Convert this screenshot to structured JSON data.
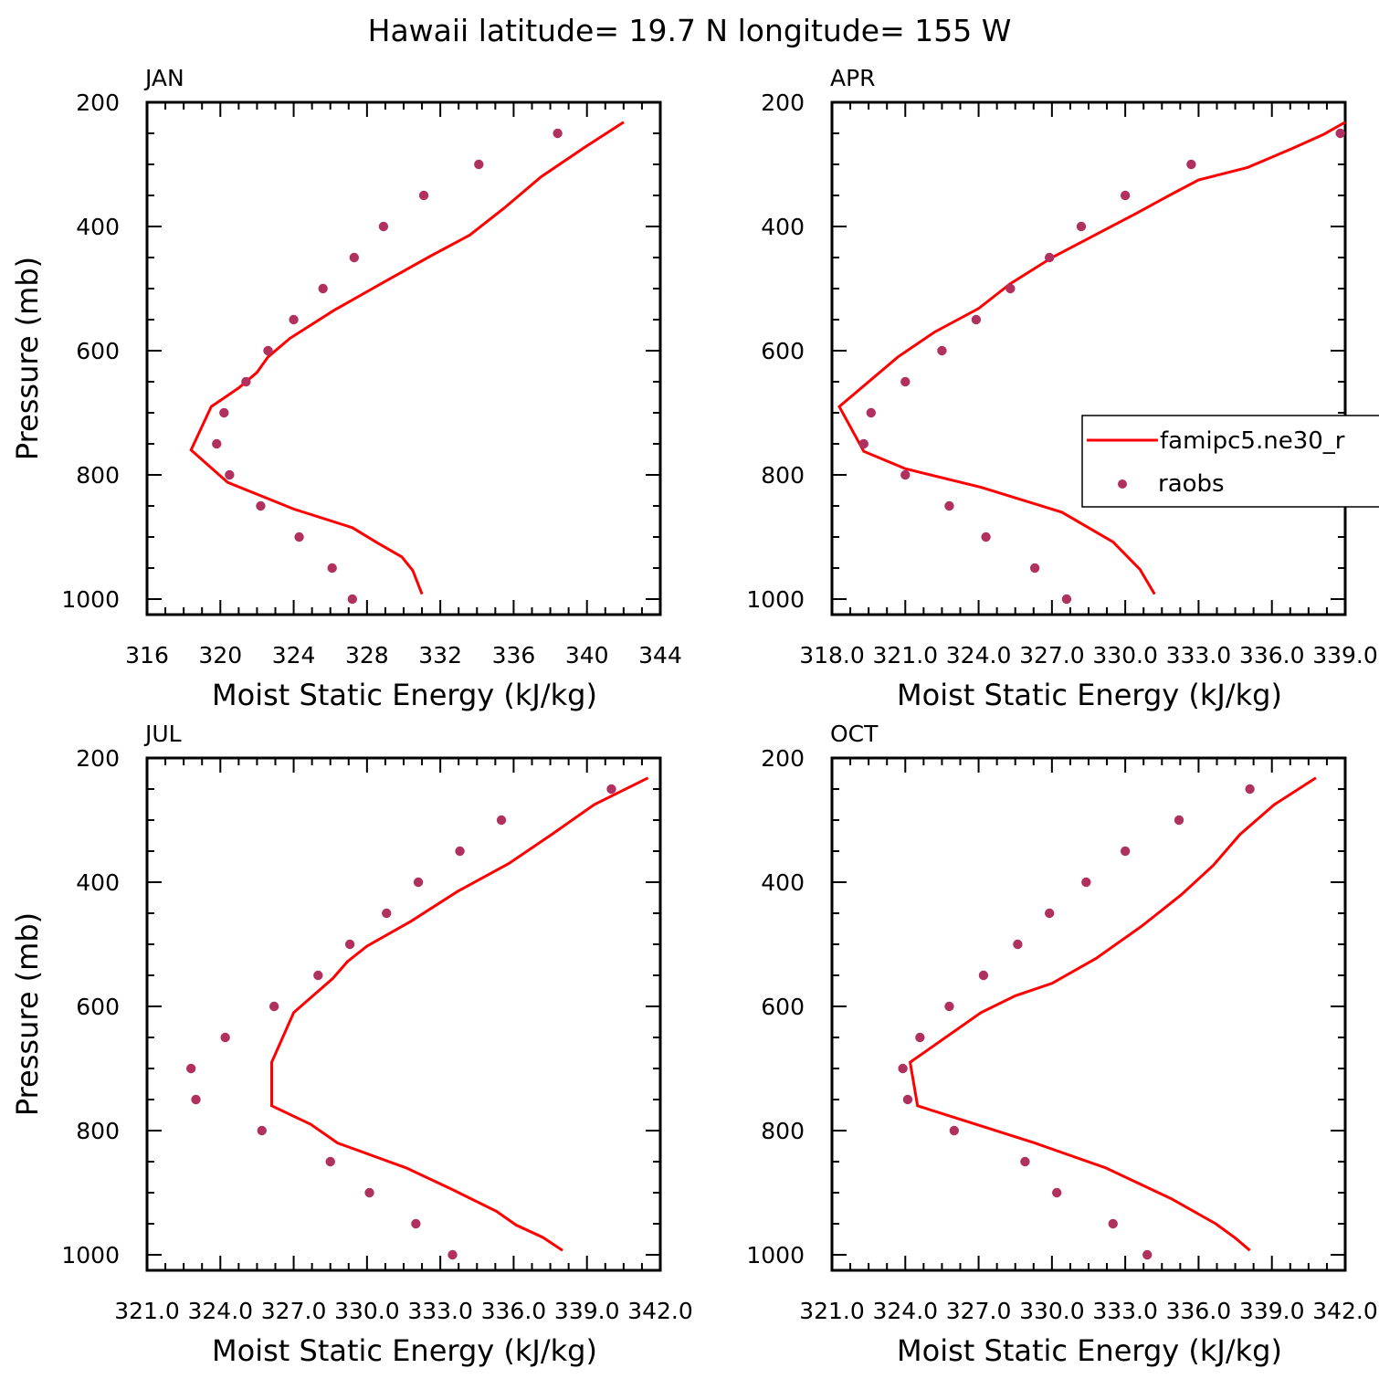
{
  "figure_title": "Hawaii  latitude= 19.7 N longitude= 155 W",
  "legend": {
    "model_label": "famipc5.ne30_r",
    "obs_label": "raobs"
  },
  "colors": {
    "model_line": "#ff0000",
    "obs_marker": "#b03060",
    "axes": "#000000"
  },
  "chart_data": [
    {
      "type": "line",
      "panel": "JAN",
      "title": "JAN",
      "xlabel": "Moist Static Energy (kJ/kg)",
      "ylabel": "Pressure (mb)",
      "xlim": [
        316,
        344
      ],
      "ylim": [
        1025,
        200
      ],
      "xticks": [
        316,
        320,
        324,
        328,
        332,
        336,
        340,
        344
      ],
      "xtick_labels": [
        "316",
        "320",
        "324",
        "328",
        "332",
        "336",
        "340",
        "344"
      ],
      "yticks": [
        200,
        400,
        600,
        800,
        1000
      ],
      "ytick_labels": [
        "200",
        "400",
        "600",
        "800",
        "1000"
      ],
      "series": [
        {
          "name": "famipc5.ne30_r",
          "kind": "line",
          "x": [
            342.0,
            339.9,
            337.5,
            335.5,
            333.6,
            331.5,
            328.9,
            326.2,
            323.8,
            322.6,
            322.0,
            321.0,
            319.5,
            318.4,
            320.4,
            324.0,
            327.2,
            328.6,
            329.9,
            330.5,
            331.0
          ],
          "y": [
            232,
            272,
            320,
            370,
            414,
            447,
            490,
            535,
            580,
            610,
            635,
            660,
            690,
            760,
            812,
            855,
            885,
            910,
            932,
            954,
            992
          ]
        },
        {
          "name": "raobs",
          "kind": "scatter",
          "x": [
            338.4,
            334.1,
            331.1,
            328.9,
            327.3,
            325.6,
            324.0,
            322.6,
            321.4,
            320.2,
            319.8,
            320.5,
            322.2,
            324.3,
            326.1,
            327.2
          ],
          "y": [
            250,
            300,
            350,
            400,
            450,
            500,
            550,
            600,
            650,
            700,
            750,
            800,
            850,
            900,
            950,
            1000
          ]
        }
      ]
    },
    {
      "type": "line",
      "panel": "APR",
      "title": "APR",
      "xlabel": "Moist Static Energy (kJ/kg)",
      "ylabel": "",
      "xlim": [
        318.0,
        339.0
      ],
      "ylim": [
        1025,
        200
      ],
      "xticks": [
        318,
        321,
        324,
        327,
        330,
        333,
        336,
        339
      ],
      "xtick_labels": [
        "318.0",
        "321.0",
        "324.0",
        "327.0",
        "330.0",
        "333.0",
        "336.0",
        "339.0"
      ],
      "yticks": [
        200,
        400,
        600,
        800,
        1000
      ],
      "ytick_labels": [
        "200",
        "400",
        "600",
        "800",
        "1000"
      ],
      "legend_position": "center-right",
      "series": [
        {
          "name": "famipc5.ne30_r",
          "kind": "line",
          "x": [
            339.0,
            338.1,
            336.8,
            335.0,
            333.0,
            331.8,
            330.4,
            328.8,
            327.0,
            325.3,
            324.0,
            322.2,
            320.7,
            318.3,
            319.3,
            321.0,
            324.1,
            327.4,
            329.5,
            330.6,
            331.2
          ],
          "y": [
            232,
            252,
            275,
            305,
            325,
            350,
            380,
            413,
            450,
            492,
            532,
            570,
            610,
            690,
            762,
            790,
            820,
            860,
            908,
            952,
            992
          ]
        },
        {
          "name": "raobs",
          "kind": "scatter",
          "x": [
            338.8,
            332.7,
            330.0,
            328.2,
            326.9,
            325.3,
            323.9,
            322.5,
            321.0,
            319.6,
            319.3,
            321.0,
            322.8,
            324.3,
            326.3,
            327.6
          ],
          "y": [
            250,
            300,
            350,
            400,
            450,
            500,
            550,
            600,
            650,
            700,
            750,
            800,
            850,
            900,
            950,
            1000
          ]
        }
      ]
    },
    {
      "type": "line",
      "panel": "JUL",
      "title": "JUL",
      "xlabel": "Moist Static Energy (kJ/kg)",
      "ylabel": "Pressure (mb)",
      "xlim": [
        321.0,
        342.0
      ],
      "ylim": [
        1025,
        200
      ],
      "xticks": [
        321,
        324,
        327,
        330,
        333,
        336,
        339,
        342
      ],
      "xtick_labels": [
        "321.0",
        "324.0",
        "327.0",
        "330.0",
        "333.0",
        "336.0",
        "339.0",
        "342.0"
      ],
      "yticks": [
        200,
        400,
        600,
        800,
        1000
      ],
      "ytick_labels": [
        "200",
        "400",
        "600",
        "800",
        "1000"
      ],
      "series": [
        {
          "name": "famipc5.ne30_r",
          "kind": "line",
          "x": [
            341.5,
            339.3,
            337.6,
            335.8,
            333.7,
            331.8,
            330.0,
            329.2,
            328.6,
            327.0,
            326.1,
            326.1,
            326.1,
            327.7,
            328.8,
            331.6,
            333.5,
            335.3,
            336.1,
            337.2,
            338.0
          ],
          "y": [
            232,
            275,
            322,
            370,
            415,
            463,
            503,
            528,
            555,
            610,
            690,
            720,
            760,
            790,
            820,
            860,
            895,
            930,
            952,
            972,
            993
          ]
        },
        {
          "name": "raobs",
          "kind": "scatter",
          "x": [
            340.0,
            335.5,
            333.8,
            332.1,
            330.8,
            329.3,
            328.0,
            326.2,
            324.2,
            322.8,
            323.0,
            325.7,
            328.5,
            330.1,
            332.0,
            333.5
          ],
          "y": [
            250,
            300,
            350,
            400,
            450,
            500,
            550,
            600,
            650,
            700,
            750,
            800,
            850,
            900,
            950,
            1000
          ]
        }
      ]
    },
    {
      "type": "line",
      "panel": "OCT",
      "title": "OCT",
      "xlabel": "Moist Static Energy (kJ/kg)",
      "ylabel": "",
      "xlim": [
        321.0,
        342.0
      ],
      "ylim": [
        1025,
        200
      ],
      "xticks": [
        321,
        324,
        327,
        330,
        333,
        336,
        339,
        342
      ],
      "xtick_labels": [
        "321.0",
        "324.0",
        "327.0",
        "330.0",
        "333.0",
        "336.0",
        "339.0",
        "342.0"
      ],
      "yticks": [
        200,
        400,
        600,
        800,
        1000
      ],
      "ytick_labels": [
        "200",
        "400",
        "600",
        "800",
        "1000"
      ],
      "series": [
        {
          "name": "famipc5.ne30_r",
          "kind": "line",
          "x": [
            340.8,
            339.1,
            337.7,
            336.6,
            335.3,
            333.7,
            331.8,
            330.0,
            328.5,
            327.1,
            324.2,
            324.5,
            326.9,
            329.3,
            332.2,
            334.9,
            336.7,
            337.5,
            338.1
          ],
          "y": [
            232,
            275,
            323,
            373,
            420,
            470,
            523,
            563,
            583,
            610,
            690,
            760,
            790,
            820,
            860,
            910,
            950,
            973,
            993
          ]
        },
        {
          "name": "raobs",
          "kind": "scatter",
          "x": [
            338.1,
            335.2,
            333.0,
            331.4,
            329.9,
            328.6,
            327.2,
            325.8,
            324.6,
            323.9,
            324.1,
            326.0,
            328.9,
            330.2,
            332.5,
            333.9
          ],
          "y": [
            250,
            300,
            350,
            400,
            450,
            500,
            550,
            600,
            650,
            700,
            750,
            800,
            850,
            900,
            950,
            1000
          ]
        }
      ]
    }
  ]
}
